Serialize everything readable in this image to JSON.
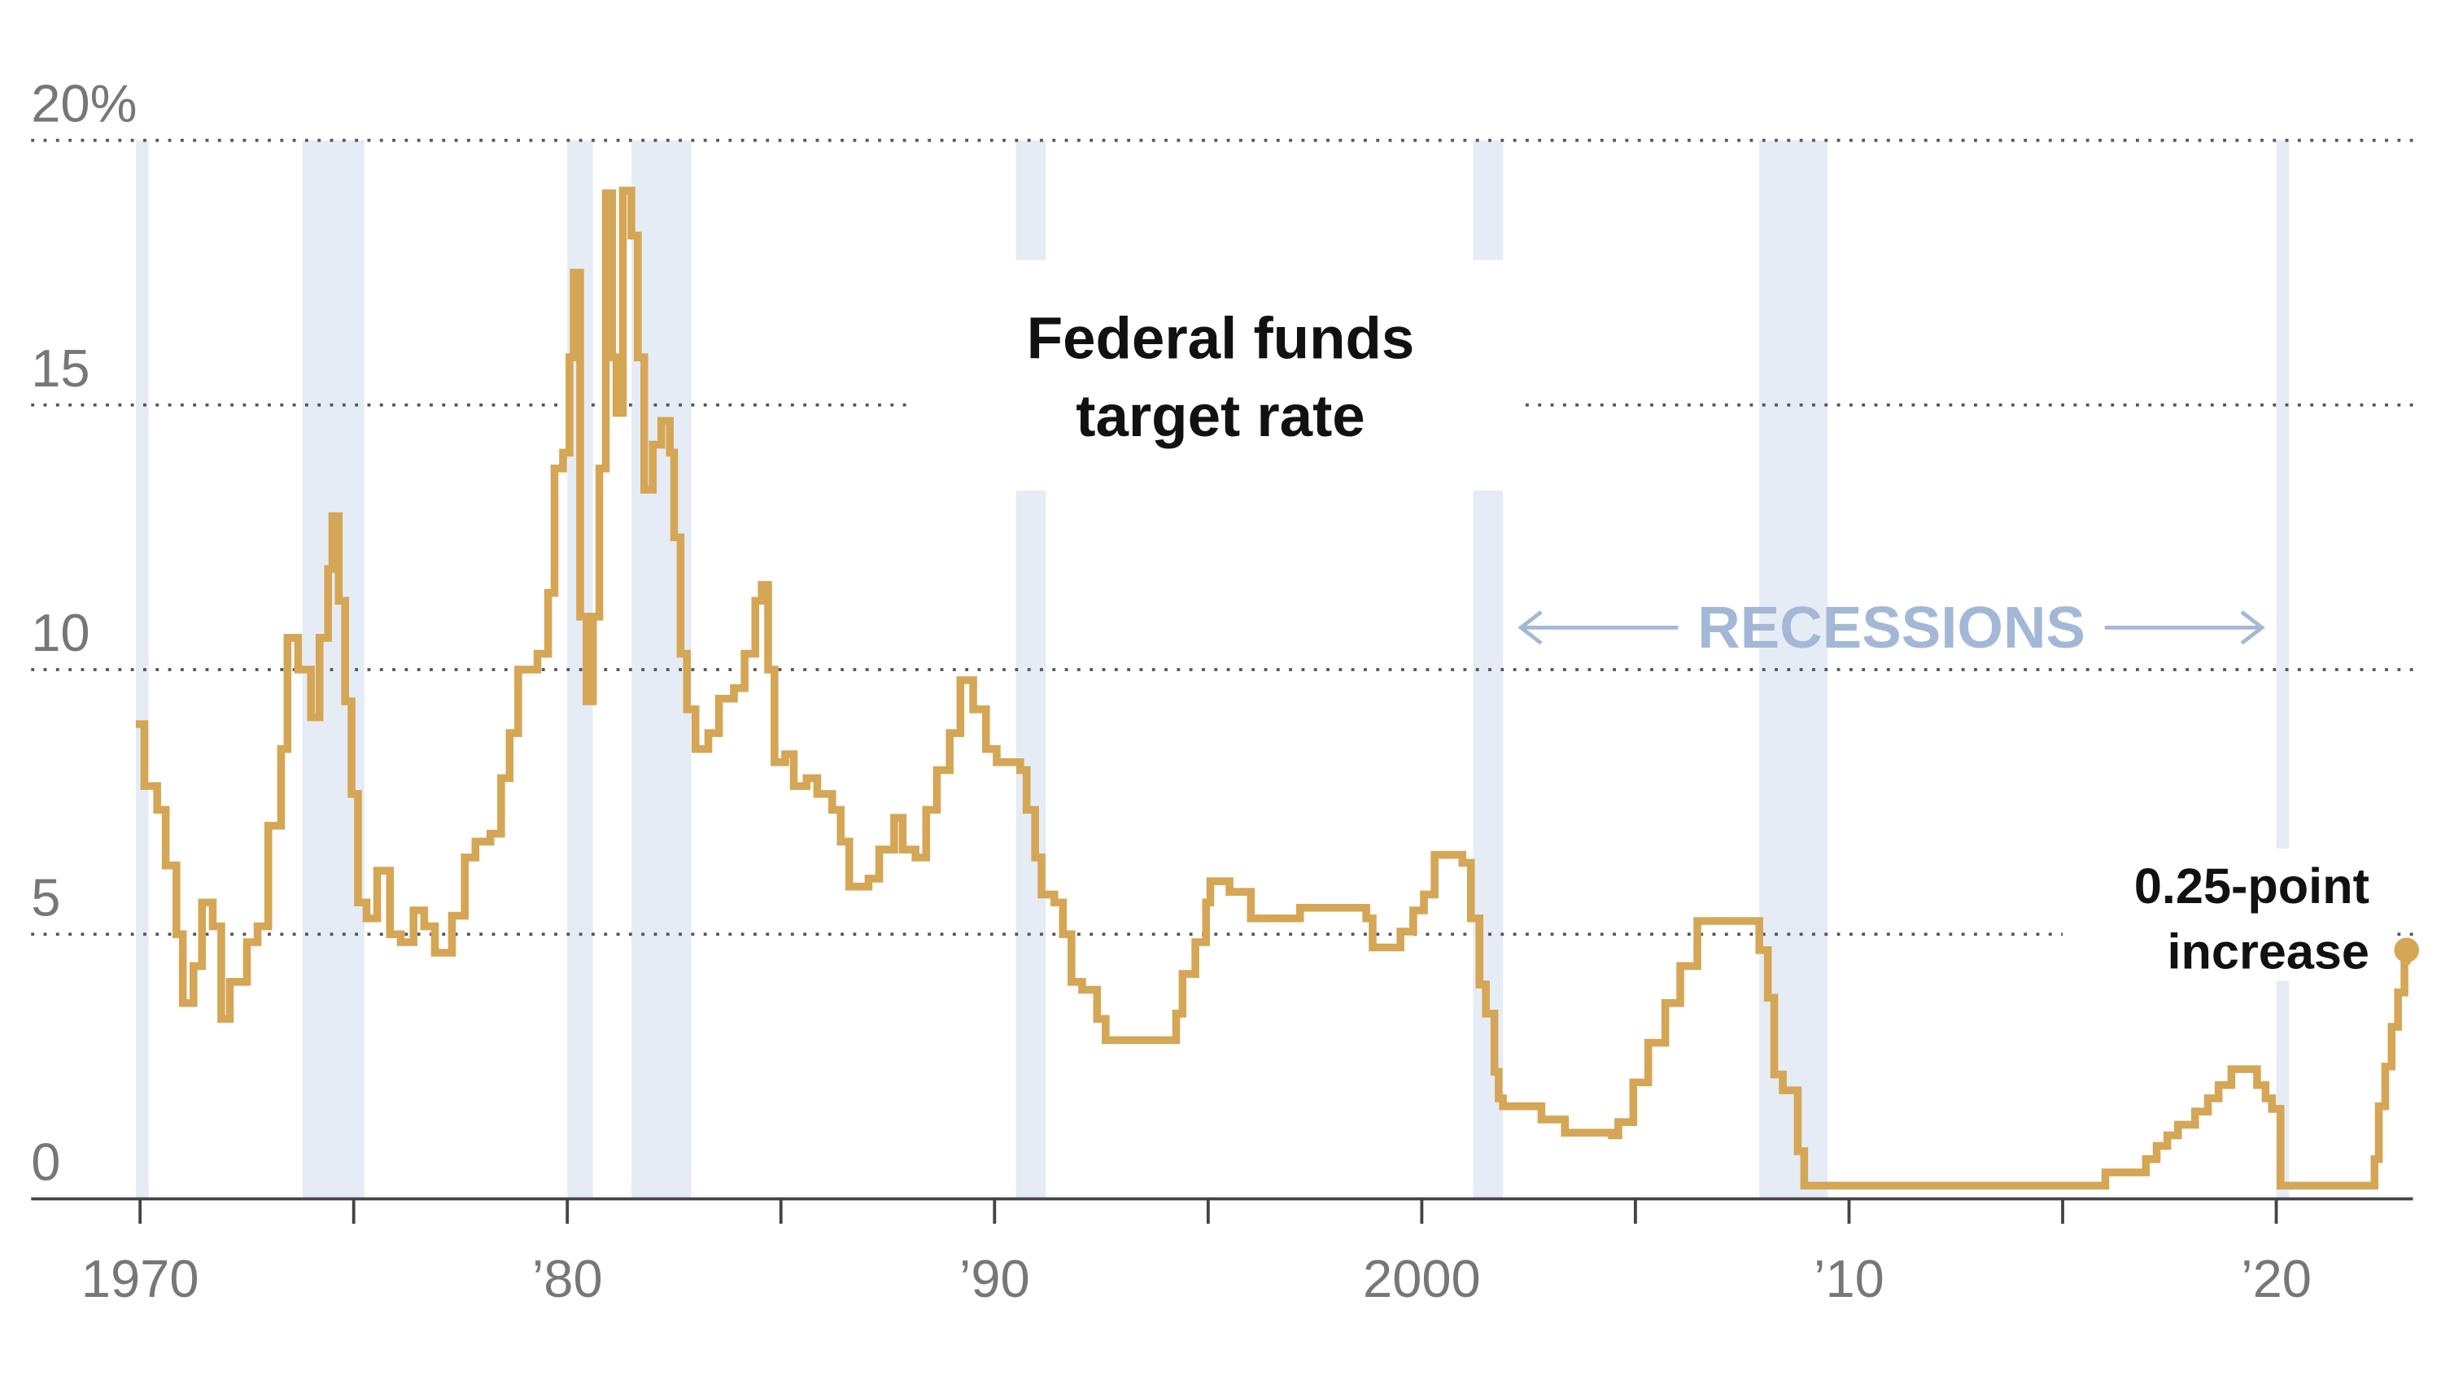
{
  "chart_data": {
    "type": "line",
    "step": true,
    "title_lines": [
      "Federal funds",
      "target rate"
    ],
    "recession_label": "RECESSIONS",
    "annotation_lines": [
      "0.25-point",
      "increase"
    ],
    "recession_color": "#e6ecf5",
    "recessions": [
      [
        1969.9,
        1970.2
      ],
      [
        1973.8,
        1975.25
      ],
      [
        1980.0,
        1980.6
      ],
      [
        1981.5,
        1982.9
      ],
      [
        1990.5,
        1991.2
      ],
      [
        2001.2,
        2001.9
      ],
      [
        2007.9,
        2009.5
      ],
      [
        2020.0,
        2020.3
      ]
    ],
    "xlim": [
      1967.45,
      2023.2
    ],
    "xticks": [
      {
        "value": 1970,
        "label": "1970"
      },
      {
        "value": 1980,
        "label": "’80"
      },
      {
        "value": 1990,
        "label": "’90"
      },
      {
        "value": 2000,
        "label": "2000"
      },
      {
        "value": 2010,
        "label": "’10"
      },
      {
        "value": 2020,
        "label": "’20"
      }
    ],
    "xminor_ticks": [
      1975,
      1985,
      1995,
      2005,
      2015
    ],
    "ylim": [
      0,
      20
    ],
    "yticks": [
      0,
      5,
      10,
      15,
      {
        "value": 20,
        "label": "20%"
      }
    ],
    "grid": true,
    "color": "#d4a655",
    "x": [
      1969.9,
      1970.1,
      1970.4,
      1970.6,
      1970.85,
      1971.0,
      1971.25,
      1971.45,
      1971.7,
      1971.9,
      1972.1,
      1972.5,
      1972.75,
      1973.0,
      1973.3,
      1973.45,
      1973.7,
      1974.0,
      1974.2,
      1974.4,
      1974.5,
      1974.65,
      1974.8,
      1974.95,
      1975.1,
      1975.3,
      1975.55,
      1975.85,
      1976.1,
      1976.4,
      1976.65,
      1976.9,
      1977.3,
      1977.6,
      1977.85,
      1978.2,
      1978.45,
      1978.65,
      1978.85,
      1979.3,
      1979.55,
      1979.7,
      1979.9,
      1980.05,
      1980.15,
      1980.3,
      1980.45,
      1980.6,
      1980.75,
      1980.9,
      1981.05,
      1981.15,
      1981.3,
      1981.5,
      1981.65,
      1981.8,
      1982.0,
      1982.2,
      1982.4,
      1982.5,
      1982.65,
      1982.8,
      1983.0,
      1983.3,
      1983.55,
      1983.9,
      1984.15,
      1984.4,
      1984.55,
      1984.7,
      1984.85,
      1985.1,
      1985.3,
      1985.6,
      1985.85,
      1986.2,
      1986.4,
      1986.6,
      1987.05,
      1987.3,
      1987.65,
      1987.85,
      1988.15,
      1988.4,
      1988.65,
      1988.95,
      1989.2,
      1989.5,
      1989.8,
      1990.05,
      1990.6,
      1990.75,
      1990.95,
      1991.1,
      1991.4,
      1991.6,
      1991.8,
      1992.05,
      1992.4,
      1992.6,
      1994.05,
      1994.25,
      1994.4,
      1994.7,
      1994.95,
      1995.05,
      1995.5,
      1996.0,
      1997.15,
      1998.7,
      1998.85,
      1999.5,
      1999.8,
      2000.05,
      2000.3,
      2000.95,
      2001.15,
      2001.35,
      2001.5,
      2001.7,
      2001.8,
      2001.9,
      2002.8,
      2003.35,
      2004.45,
      2004.6,
      2004.95,
      2005.3,
      2005.7,
      2006.05,
      2006.45,
      2007.7,
      2007.9,
      2008.1,
      2008.25,
      2008.45,
      2008.8,
      2008.95,
      2015.9,
      2016.0,
      2016.95,
      2017.2,
      2017.45,
      2017.7,
      2018.1,
      2018.4,
      2018.65,
      2018.95,
      2019.55,
      2019.75,
      2019.9,
      2020.1,
      2022.1,
      2022.3,
      2022.4,
      2022.55,
      2022.7,
      2022.85,
      2023.0,
      2023.05
    ],
    "values": [
      8.97,
      7.8,
      7.35,
      6.3,
      5.0,
      3.7,
      4.4,
      5.6,
      5.15,
      3.4,
      4.1,
      4.85,
      5.15,
      7.05,
      8.5,
      10.6,
      10.0,
      9.1,
      10.6,
      11.9,
      12.9,
      11.3,
      9.4,
      7.65,
      5.6,
      5.3,
      6.2,
      5.0,
      4.85,
      5.45,
      5.15,
      4.65,
      5.35,
      6.45,
      6.75,
      6.9,
      7.95,
      8.8,
      10.0,
      10.3,
      11.45,
      13.8,
      14.1,
      15.9,
      17.5,
      11.0,
      9.4,
      11.0,
      13.8,
      19.0,
      15.9,
      14.85,
      19.05,
      18.2,
      15.9,
      13.4,
      14.25,
      14.7,
      14.1,
      12.5,
      10.3,
      9.25,
      8.5,
      8.8,
      9.45,
      9.65,
      10.3,
      11.3,
      11.6,
      10.0,
      8.25,
      8.4,
      7.8,
      7.95,
      7.65,
      7.35,
      6.75,
      5.9,
      6.05,
      6.6,
      7.2,
      6.6,
      6.45,
      7.35,
      8.1,
      8.8,
      9.8,
      9.25,
      8.5,
      8.25,
      8.1,
      7.35,
      6.45,
      5.75,
      5.6,
      5.0,
      4.1,
      3.95,
      3.4,
      3.0,
      3.0,
      3.5,
      4.25,
      4.85,
      5.6,
      6.0,
      5.8,
      5.3,
      5.5,
      5.3,
      4.75,
      5.05,
      5.45,
      5.75,
      6.5,
      6.35,
      5.3,
      4.05,
      3.5,
      2.4,
      1.9,
      1.75,
      1.5,
      1.25,
      1.2,
      1.45,
      2.2,
      2.95,
      3.7,
      4.4,
      5.25,
      5.25,
      4.7,
      3.8,
      2.35,
      2.05,
      0.9,
      0.25,
      0.25,
      0.5,
      0.75,
      1.0,
      1.2,
      1.4,
      1.65,
      1.9,
      2.15,
      2.45,
      2.15,
      1.9,
      1.7,
      0.25,
      0.25,
      0.75,
      1.75,
      2.5,
      3.25,
      3.9,
      4.5,
      4.7
    ]
  }
}
